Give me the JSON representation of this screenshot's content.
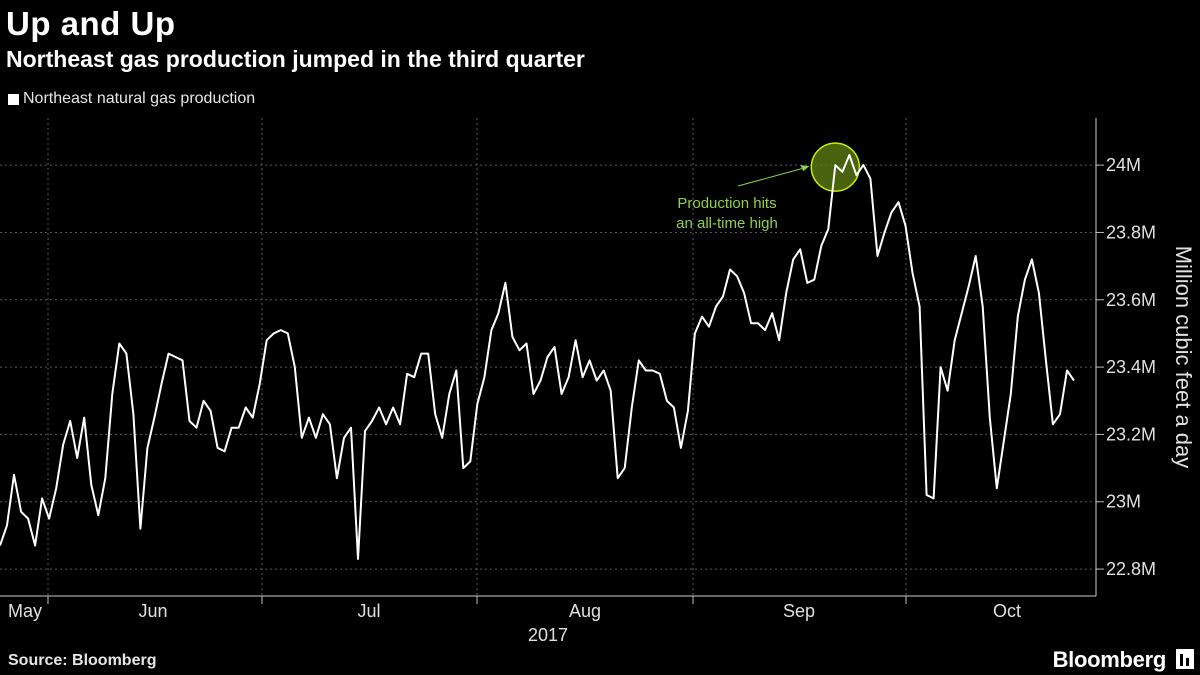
{
  "header": {
    "title": "Up and Up",
    "subtitle": "Northeast gas production jumped in the third quarter"
  },
  "legend": {
    "label": "Northeast natural gas production"
  },
  "footer": {
    "source": "Source: Bloomberg",
    "brand": "Bloomberg"
  },
  "colors": {
    "background": "#000000",
    "line": "#ffffff",
    "grid": "#5a5a5a",
    "annotation": "#8ed14b",
    "highlight": "#c8f000"
  },
  "chart_data": {
    "type": "line",
    "title": "Up and Up",
    "subtitle": "Northeast gas production jumped in the third quarter",
    "ylabel": "Million cubic feet a day",
    "xlabel": "",
    "x_year_label": "2017",
    "x_tick_labels": [
      "May",
      "Jun",
      "Jul",
      "Aug",
      "Sep",
      "Oct"
    ],
    "y_tick_labels": [
      "22.8M",
      "23M",
      "23.2M",
      "23.4M",
      "23.6M",
      "23.8M",
      "24M"
    ],
    "y_ticks": [
      22.8,
      23.0,
      23.2,
      23.4,
      23.6,
      23.8,
      24.0
    ],
    "ylim": [
      22.72,
      24.14
    ],
    "grid": true,
    "legend_position": "top-left",
    "annotation": {
      "text_lines": [
        "Production hits",
        "an all-time high"
      ],
      "index": 119
    },
    "series": [
      {
        "name": "Northeast natural gas production",
        "values": [
          22.87,
          22.93,
          23.08,
          22.97,
          22.95,
          22.87,
          23.01,
          22.95,
          23.04,
          23.17,
          23.24,
          23.13,
          23.25,
          23.05,
          22.96,
          23.07,
          23.32,
          23.47,
          23.44,
          23.26,
          22.92,
          23.16,
          23.25,
          23.35,
          23.44,
          23.43,
          23.42,
          23.24,
          23.22,
          23.3,
          23.27,
          23.16,
          23.15,
          23.22,
          23.22,
          23.28,
          23.25,
          23.35,
          23.48,
          23.5,
          23.51,
          23.5,
          23.4,
          23.19,
          23.25,
          23.19,
          23.26,
          23.23,
          23.07,
          23.19,
          23.22,
          22.83,
          23.21,
          23.24,
          23.28,
          23.23,
          23.28,
          23.23,
          23.38,
          23.37,
          23.44,
          23.44,
          23.26,
          23.19,
          23.32,
          23.39,
          23.1,
          23.12,
          23.29,
          23.37,
          23.51,
          23.56,
          23.65,
          23.49,
          23.45,
          23.47,
          23.32,
          23.36,
          23.43,
          23.46,
          23.32,
          23.37,
          23.48,
          23.37,
          23.42,
          23.36,
          23.39,
          23.33,
          23.07,
          23.1,
          23.28,
          23.42,
          23.39,
          23.39,
          23.38,
          23.3,
          23.28,
          23.16,
          23.27,
          23.5,
          23.55,
          23.52,
          23.58,
          23.61,
          23.69,
          23.67,
          23.62,
          23.53,
          23.53,
          23.51,
          23.56,
          23.48,
          23.62,
          23.72,
          23.75,
          23.65,
          23.66,
          23.76,
          23.81,
          24.0,
          23.98,
          24.03,
          23.97,
          24.0,
          23.96,
          23.73,
          23.8,
          23.86,
          23.89,
          23.82,
          23.68,
          23.58,
          23.02,
          23.01,
          23.4,
          23.33,
          23.48,
          23.56,
          23.64,
          23.73,
          23.58,
          23.25,
          23.04,
          23.18,
          23.32,
          23.55,
          23.66,
          23.72,
          23.62,
          23.42,
          23.23,
          23.26,
          23.39,
          23.36
        ]
      }
    ]
  }
}
